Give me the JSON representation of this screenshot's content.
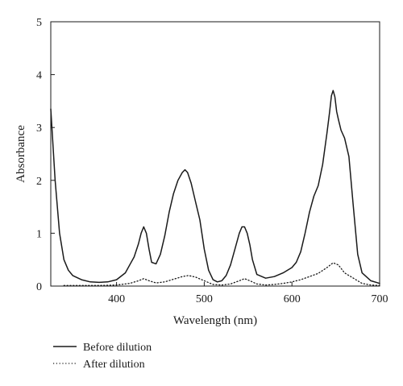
{
  "chart_data": {
    "type": "line",
    "xlabel": "Wavelength (nm)",
    "ylabel": "Absorbance",
    "xlim": [
      325,
      700
    ],
    "ylim": [
      0,
      5
    ],
    "xticks": [
      400,
      500,
      600,
      700
    ],
    "yticks": [
      0,
      1,
      2,
      3,
      4,
      5
    ],
    "grid": false,
    "legend_position": "bottom-left",
    "series": [
      {
        "name": "Before dilution",
        "style": "solid",
        "color": "#1a1a1a",
        "x": [
          325,
          330,
          335,
          340,
          345,
          350,
          360,
          370,
          380,
          390,
          400,
          410,
          415,
          420,
          425,
          428,
          431,
          434,
          437,
          440,
          445,
          450,
          455,
          460,
          465,
          470,
          475,
          478,
          481,
          485,
          490,
          495,
          500,
          505,
          510,
          515,
          520,
          525,
          530,
          535,
          540,
          543,
          546,
          549,
          552,
          555,
          560,
          570,
          580,
          590,
          600,
          605,
          610,
          615,
          620,
          625,
          630,
          635,
          640,
          643,
          645,
          647,
          649,
          651,
          653,
          656,
          660,
          665,
          670,
          675,
          680,
          690,
          700
        ],
        "y": [
          3.35,
          2.0,
          1.0,
          0.5,
          0.3,
          0.2,
          0.12,
          0.08,
          0.07,
          0.08,
          0.12,
          0.25,
          0.4,
          0.55,
          0.8,
          1.0,
          1.12,
          1.0,
          0.7,
          0.45,
          0.42,
          0.6,
          0.95,
          1.4,
          1.75,
          2.0,
          2.15,
          2.2,
          2.15,
          1.95,
          1.6,
          1.25,
          0.7,
          0.3,
          0.12,
          0.08,
          0.1,
          0.2,
          0.4,
          0.7,
          1.0,
          1.12,
          1.12,
          1.0,
          0.78,
          0.5,
          0.22,
          0.15,
          0.18,
          0.25,
          0.35,
          0.45,
          0.65,
          1.0,
          1.4,
          1.7,
          1.9,
          2.3,
          2.9,
          3.3,
          3.6,
          3.7,
          3.58,
          3.3,
          3.15,
          2.95,
          2.8,
          2.45,
          1.5,
          0.6,
          0.25,
          0.1,
          0.05
        ]
      },
      {
        "name": "After dilution",
        "style": "dotted",
        "color": "#1a1a1a",
        "x": [
          340,
          360,
          380,
          400,
          415,
          425,
          431,
          437,
          445,
          455,
          465,
          475,
          482,
          490,
          500,
          510,
          520,
          530,
          540,
          546,
          552,
          560,
          570,
          580,
          590,
          600,
          610,
          620,
          630,
          640,
          647,
          653,
          660,
          670,
          680,
          690,
          700
        ],
        "y": [
          0.01,
          0.01,
          0.01,
          0.02,
          0.05,
          0.1,
          0.14,
          0.1,
          0.06,
          0.08,
          0.13,
          0.18,
          0.2,
          0.17,
          0.1,
          0.03,
          0.02,
          0.04,
          0.1,
          0.14,
          0.1,
          0.04,
          0.02,
          0.03,
          0.05,
          0.08,
          0.12,
          0.18,
          0.24,
          0.35,
          0.44,
          0.4,
          0.25,
          0.15,
          0.05,
          0.02,
          0.01
        ]
      }
    ]
  }
}
